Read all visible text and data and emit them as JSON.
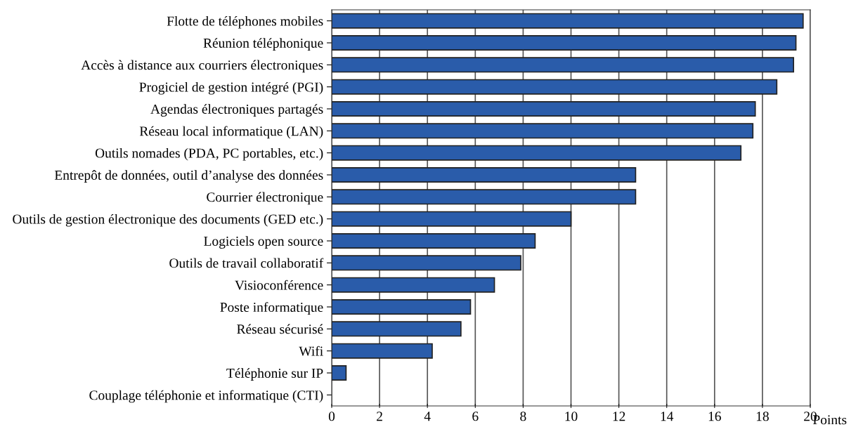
{
  "chart_data": {
    "type": "bar",
    "orientation": "horizontal",
    "xlabel": "Points",
    "categories": [
      "Flotte de téléphones mobiles",
      "Réunion téléphonique",
      "Accès à distance aux courriers électroniques",
      "Progiciel de gestion intégré (PGI)",
      "Agendas électroniques partagés",
      "Réseau local informatique (LAN)",
      "Outils nomades (PDA, PC portables, etc.)",
      "Entrepôt de données, outil d’analyse des données",
      "Courrier électronique",
      "Outils de gestion électronique des documents (GED etc.)",
      "Logiciels open source",
      "Outils de travail collaboratif",
      "Visioconférence",
      "Poste informatique",
      "Réseau sécurisé",
      "Wifi",
      "Téléphonie sur IP",
      "Couplage téléphonie et informatique (CTI)"
    ],
    "values": [
      19.7,
      19.4,
      19.3,
      18.6,
      17.7,
      17.6,
      17.1,
      12.7,
      12.7,
      10.0,
      8.5,
      7.9,
      6.8,
      5.8,
      5.4,
      4.2,
      0.6,
      0
    ],
    "color": "#2a5caa",
    "xlim": [
      0,
      20
    ],
    "xticks": [
      0,
      2,
      4,
      6,
      8,
      10,
      12,
      14,
      16,
      18,
      20
    ],
    "grid": "x"
  }
}
